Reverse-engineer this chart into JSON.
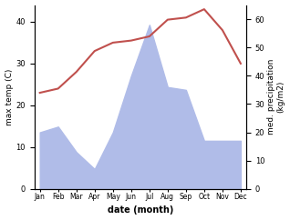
{
  "months": [
    "Jan",
    "Feb",
    "Mar",
    "Apr",
    "May",
    "Jun",
    "Jul",
    "Aug",
    "Sep",
    "Oct",
    "Nov",
    "Dec"
  ],
  "temp": [
    23,
    24,
    28,
    33,
    35,
    35.5,
    36.5,
    40.5,
    41,
    43,
    38,
    30
  ],
  "precip": [
    20,
    22,
    13,
    7,
    20,
    40,
    58,
    36,
    35,
    17,
    17,
    17
  ],
  "ylabel_left": "max temp (C)",
  "ylabel_right": "med. precipitation\n(kg/m2)",
  "xlabel": "date (month)",
  "ylim_left": [
    0,
    44
  ],
  "ylim_right": [
    0,
    65
  ],
  "yticks_left": [
    0,
    10,
    20,
    30,
    40
  ],
  "yticks_right": [
    0,
    10,
    20,
    30,
    40,
    50,
    60
  ],
  "area_color": "#b0bce8",
  "line_color": "#c0504d",
  "bg_color": "#ffffff"
}
